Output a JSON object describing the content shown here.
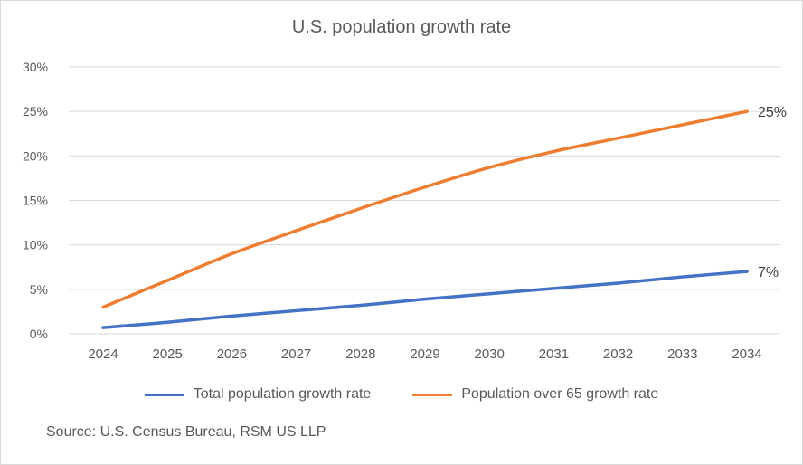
{
  "chart_data": {
    "type": "line",
    "title": "U.S. population growth rate",
    "x": [
      "2024",
      "2025",
      "2026",
      "2027",
      "2028",
      "2029",
      "2030",
      "2031",
      "2032",
      "2033",
      "2034"
    ],
    "series": [
      {
        "name": "Total population growth rate",
        "color": "#4472c4",
        "values": [
          0.7,
          1.3,
          2.0,
          2.6,
          3.2,
          3.9,
          4.5,
          5.1,
          5.7,
          6.4,
          7.0
        ],
        "end_label": "7%"
      },
      {
        "name": "Population over 65 growth rate",
        "color": "#ed7d31",
        "values": [
          3.0,
          6.0,
          9.0,
          11.6,
          14.1,
          16.5,
          18.7,
          20.5,
          22.0,
          23.5,
          25.0
        ],
        "end_label": "25%"
      }
    ],
    "yticks": [
      "0%",
      "5%",
      "10%",
      "15%",
      "20%",
      "25%",
      "30%"
    ],
    "ylim": [
      0,
      30
    ],
    "grid": true,
    "legend": "bottom",
    "source": "Source: U.S. Census Bureau, RSM US LLP"
  }
}
